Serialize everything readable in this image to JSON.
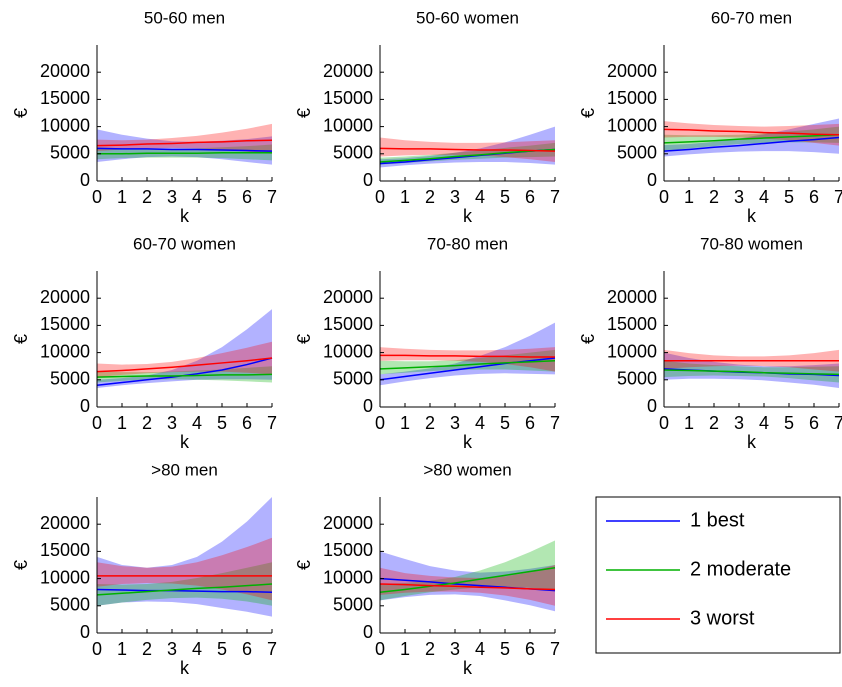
{
  "chart_data": [
    {
      "type": "line",
      "title": "50-60  men",
      "xlabel": "k",
      "ylabel": "€",
      "x": [
        0,
        1,
        2,
        3,
        4,
        5,
        6,
        7
      ],
      "xlim": [
        0,
        7
      ],
      "xticks": [
        0,
        1,
        2,
        3,
        4,
        5,
        6,
        7
      ],
      "ylim": [
        0,
        25000
      ],
      "yticks": [
        0,
        5000,
        10000,
        15000,
        20000
      ],
      "series": [
        {
          "values": [
            6000,
            5900,
            5900,
            5800,
            5800,
            5700,
            5600,
            5500
          ],
          "lower": [
            3500,
            4000,
            4400,
            4500,
            4400,
            4000,
            3500,
            3000
          ],
          "upper": [
            9500,
            8500,
            7800,
            7300,
            7200,
            7400,
            7700,
            8200
          ]
        },
        {
          "values": [
            5000,
            5000,
            5100,
            5100,
            5100,
            5200,
            5200,
            5200
          ],
          "lower": [
            4000,
            4200,
            4300,
            4300,
            4300,
            4200,
            4000,
            3800
          ],
          "upper": [
            6200,
            6000,
            5900,
            5900,
            6000,
            6200,
            6400,
            6700
          ]
        },
        {
          "values": [
            6500,
            6600,
            6800,
            6900,
            7100,
            7200,
            7400,
            7500
          ],
          "lower": [
            5500,
            5800,
            6000,
            6100,
            6000,
            5800,
            5400,
            5000
          ],
          "upper": [
            7600,
            7500,
            7600,
            7900,
            8300,
            8900,
            9600,
            10500
          ]
        }
      ]
    },
    {
      "type": "line",
      "title": "50-60  women",
      "xlabel": "k",
      "ylabel": "€",
      "x": [
        0,
        1,
        2,
        3,
        4,
        5,
        6,
        7
      ],
      "xlim": [
        0,
        7
      ],
      "xticks": [
        0,
        1,
        2,
        3,
        4,
        5,
        6,
        7
      ],
      "ylim": [
        0,
        25000
      ],
      "yticks": [
        0,
        5000,
        10000,
        15000,
        20000
      ],
      "series": [
        {
          "values": [
            3200,
            3500,
            3900,
            4300,
            4700,
            5100,
            5500,
            5800
          ],
          "lower": [
            2500,
            2900,
            3200,
            3400,
            3500,
            3500,
            3300,
            3000
          ],
          "upper": [
            4000,
            4200,
            4600,
            5200,
            6000,
            7100,
            8500,
            10000
          ]
        },
        {
          "values": [
            3500,
            3800,
            4100,
            4500,
            4800,
            5200,
            5500,
            5800
          ],
          "lower": [
            3000,
            3300,
            3600,
            3900,
            4100,
            4300,
            4400,
            4500
          ],
          "upper": [
            4300,
            4500,
            4800,
            5200,
            5600,
            6100,
            6500,
            7000
          ]
        },
        {
          "values": [
            6000,
            5900,
            5900,
            5800,
            5700,
            5700,
            5600,
            5500
          ],
          "lower": [
            4500,
            4700,
            4800,
            4800,
            4700,
            4400,
            4000,
            3500
          ],
          "upper": [
            8000,
            7500,
            7200,
            7000,
            7000,
            7100,
            7300,
            7500
          ]
        }
      ]
    },
    {
      "type": "line",
      "title": "60-70  men",
      "xlabel": "k",
      "ylabel": "€",
      "x": [
        0,
        1,
        2,
        3,
        4,
        5,
        6,
        7
      ],
      "xlim": [
        0,
        7
      ],
      "xticks": [
        0,
        1,
        2,
        3,
        4,
        5,
        6,
        7
      ],
      "ylim": [
        0,
        25000
      ],
      "yticks": [
        0,
        5000,
        10000,
        15000,
        20000
      ],
      "series": [
        {
          "values": [
            5500,
            5800,
            6200,
            6500,
            6900,
            7300,
            7600,
            8000
          ],
          "lower": [
            4500,
            4900,
            5200,
            5400,
            5500,
            5500,
            5300,
            5000
          ],
          "upper": [
            6600,
            6800,
            7200,
            7800,
            8600,
            9500,
            10500,
            11500
          ]
        },
        {
          "values": [
            7000,
            7200,
            7400,
            7700,
            7900,
            8100,
            8300,
            8500
          ],
          "lower": [
            5500,
            6000,
            6400,
            6800,
            7000,
            7100,
            7100,
            7000
          ],
          "upper": [
            8500,
            8400,
            8400,
            8500,
            8800,
            9100,
            9500,
            10000
          ]
        },
        {
          "values": [
            9500,
            9400,
            9200,
            9100,
            8900,
            8800,
            8600,
            8500
          ],
          "lower": [
            8000,
            8100,
            8100,
            8000,
            7800,
            7500,
            7000,
            6500
          ],
          "upper": [
            11000,
            10600,
            10300,
            10100,
            10000,
            10100,
            10300,
            10500
          ]
        }
      ]
    },
    {
      "type": "line",
      "title": "60-70  women",
      "xlabel": "k",
      "ylabel": "€",
      "x": [
        0,
        1,
        2,
        3,
        4,
        5,
        6,
        7
      ],
      "xlim": [
        0,
        7
      ],
      "xticks": [
        0,
        1,
        2,
        3,
        4,
        5,
        6,
        7
      ],
      "ylim": [
        0,
        25000
      ],
      "yticks": [
        0,
        5000,
        10000,
        15000,
        20000
      ],
      "series": [
        {
          "values": [
            4000,
            4500,
            5000,
            5500,
            6100,
            6800,
            7800,
            9000
          ],
          "lower": [
            3500,
            4000,
            4400,
            4700,
            5000,
            5100,
            5100,
            5000
          ],
          "upper": [
            5000,
            5300,
            5800,
            6800,
            8500,
            11000,
            14300,
            18000
          ]
        },
        {
          "values": [
            5500,
            5600,
            5700,
            5700,
            5800,
            5900,
            5900,
            6000
          ],
          "lower": [
            4500,
            4800,
            5000,
            5100,
            5000,
            4900,
            4700,
            4500
          ],
          "upper": [
            6500,
            6400,
            6400,
            6500,
            6700,
            6900,
            7200,
            7500
          ]
        },
        {
          "values": [
            6500,
            6700,
            7000,
            7300,
            7700,
            8100,
            8500,
            9000
          ],
          "lower": [
            5500,
            5900,
            6200,
            6400,
            6500,
            6500,
            6300,
            6000
          ],
          "upper": [
            8000,
            7800,
            7900,
            8300,
            9000,
            9900,
            10900,
            12000
          ]
        }
      ]
    },
    {
      "type": "line",
      "title": "70-80  men",
      "xlabel": "k",
      "ylabel": "€",
      "x": [
        0,
        1,
        2,
        3,
        4,
        5,
        6,
        7
      ],
      "xlim": [
        0,
        7
      ],
      "xticks": [
        0,
        1,
        2,
        3,
        4,
        5,
        6,
        7
      ],
      "ylim": [
        0,
        25000
      ],
      "yticks": [
        0,
        5000,
        10000,
        15000,
        20000
      ],
      "series": [
        {
          "values": [
            5000,
            5600,
            6200,
            6800,
            7400,
            8000,
            8500,
            9000
          ],
          "lower": [
            4000,
            4700,
            5300,
            5800,
            6100,
            6200,
            6100,
            6000
          ],
          "upper": [
            6000,
            6500,
            7100,
            8000,
            9400,
            11000,
            13100,
            15500
          ]
        },
        {
          "values": [
            7000,
            7200,
            7400,
            7600,
            7900,
            8100,
            8300,
            8500
          ],
          "lower": [
            6000,
            6300,
            6600,
            6800,
            6900,
            6900,
            6700,
            6500
          ],
          "upper": [
            8500,
            8400,
            8400,
            8600,
            9000,
            9500,
            10000,
            10500
          ]
        },
        {
          "values": [
            9500,
            9500,
            9400,
            9400,
            9300,
            9300,
            9200,
            9200
          ],
          "lower": [
            8500,
            8600,
            8600,
            8500,
            8300,
            7900,
            7300,
            6500
          ],
          "upper": [
            11000,
            10700,
            10500,
            10400,
            10400,
            10500,
            10700,
            11000
          ]
        }
      ]
    },
    {
      "type": "line",
      "title": "70-80  women",
      "xlabel": "k",
      "ylabel": "€",
      "x": [
        0,
        1,
        2,
        3,
        4,
        5,
        6,
        7
      ],
      "xlim": [
        0,
        7
      ],
      "xticks": [
        0,
        1,
        2,
        3,
        4,
        5,
        6,
        7
      ],
      "ylim": [
        0,
        25000
      ],
      "yticks": [
        0,
        5000,
        10000,
        15000,
        20000
      ],
      "series": [
        {
          "values": [
            7000,
            6800,
            6600,
            6400,
            6300,
            6100,
            6000,
            5800
          ],
          "lower": [
            5000,
            5200,
            5200,
            5100,
            4900,
            4500,
            4100,
            3500
          ],
          "upper": [
            10000,
            9000,
            8300,
            7800,
            7500,
            7500,
            7700,
            8000
          ]
        },
        {
          "values": [
            6800,
            6700,
            6600,
            6500,
            6300,
            6200,
            6100,
            6000
          ],
          "lower": [
            5500,
            5700,
            5800,
            5700,
            5600,
            5300,
            4900,
            4500
          ],
          "upper": [
            8500,
            8000,
            7700,
            7500,
            7300,
            7300,
            7400,
            7500
          ]
        },
        {
          "values": [
            8500,
            8500,
            8500,
            8500,
            8500,
            8500,
            8500,
            8500
          ],
          "lower": [
            7000,
            7300,
            7500,
            7600,
            7500,
            7300,
            6900,
            6500
          ],
          "upper": [
            10500,
            9900,
            9500,
            9300,
            9300,
            9500,
            9900,
            10500
          ]
        }
      ]
    },
    {
      "type": "line",
      "title": ">80  men",
      "xlabel": "k",
      "ylabel": "€",
      "x": [
        0,
        1,
        2,
        3,
        4,
        5,
        6,
        7
      ],
      "xlim": [
        0,
        7
      ],
      "xticks": [
        0,
        1,
        2,
        3,
        4,
        5,
        6,
        7
      ],
      "ylim": [
        0,
        25000
      ],
      "yticks": [
        0,
        5000,
        10000,
        15000,
        20000
      ],
      "series": [
        {
          "values": [
            8000,
            7900,
            7800,
            7800,
            7700,
            7600,
            7600,
            7500
          ],
          "lower": [
            5000,
            5600,
            5800,
            5700,
            5300,
            4600,
            3900,
            3000
          ],
          "upper": [
            14000,
            12500,
            12000,
            12500,
            14000,
            16800,
            20500,
            25000
          ]
        },
        {
          "values": [
            7000,
            7300,
            7600,
            7900,
            8200,
            8400,
            8700,
            9000
          ],
          "lower": [
            5000,
            5600,
            6100,
            6400,
            6500,
            6300,
            5800,
            5000
          ],
          "upper": [
            9000,
            8900,
            9000,
            9400,
            10100,
            11000,
            12000,
            13000
          ]
        },
        {
          "values": [
            10500,
            10500,
            10500,
            10500,
            10500,
            10500,
            10500,
            10500
          ],
          "lower": [
            8500,
            9000,
            9200,
            9100,
            8700,
            8000,
            7100,
            6000
          ],
          "upper": [
            13000,
            12300,
            12000,
            12200,
            13000,
            14300,
            15800,
            17500
          ]
        }
      ]
    },
    {
      "type": "line",
      "title": ">80  women",
      "xlabel": "k",
      "ylabel": "€",
      "x": [
        0,
        1,
        2,
        3,
        4,
        5,
        6,
        7
      ],
      "xlim": [
        0,
        7
      ],
      "xticks": [
        0,
        1,
        2,
        3,
        4,
        5,
        6,
        7
      ],
      "ylim": [
        0,
        25000
      ],
      "yticks": [
        0,
        5000,
        10000,
        15000,
        20000
      ],
      "series": [
        {
          "values": [
            10000,
            9700,
            9400,
            9000,
            8700,
            8400,
            8100,
            7800
          ],
          "lower": [
            6000,
            6600,
            7000,
            7100,
            6800,
            6000,
            5100,
            4000
          ],
          "upper": [
            15000,
            13600,
            12300,
            11500,
            11100,
            11300,
            11800,
            12500
          ]
        },
        {
          "values": [
            7500,
            8000,
            8600,
            9200,
            9900,
            10600,
            11300,
            12000
          ],
          "lower": [
            6000,
            6800,
            7500,
            8000,
            8400,
            8500,
            8300,
            8000
          ],
          "upper": [
            9000,
            9200,
            9600,
            10300,
            11500,
            13000,
            14900,
            17000
          ]
        },
        {
          "values": [
            9000,
            8900,
            8700,
            8600,
            8400,
            8300,
            8100,
            8000
          ],
          "lower": [
            7000,
            7400,
            7600,
            7600,
            7400,
            6900,
            6100,
            5000
          ],
          "upper": [
            12000,
            11000,
            10500,
            10200,
            10100,
            10400,
            11200,
            12500
          ]
        }
      ]
    }
  ],
  "legend": {
    "position": "lower right",
    "entries": [
      {
        "name": "1 best",
        "color": "#0000ff"
      },
      {
        "name": "2 moderate",
        "color": "#00b000"
      },
      {
        "name": "3 worst",
        "color": "#ff0000"
      }
    ]
  }
}
